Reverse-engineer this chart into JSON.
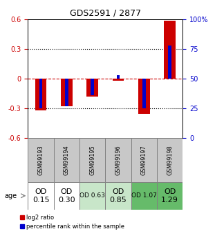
{
  "title": "GDS2591 / 2877",
  "samples": [
    "GSM99193",
    "GSM99194",
    "GSM99195",
    "GSM99196",
    "GSM99197",
    "GSM99198"
  ],
  "log2_ratio": [
    -0.32,
    -0.28,
    -0.18,
    -0.02,
    -0.355,
    0.585
  ],
  "percentile_rank_pct": [
    25,
    27,
    36,
    53,
    25,
    78
  ],
  "age_labels": [
    "OD\n0.15",
    "OD\n0.30",
    "OD 0.63",
    "OD\n0.85",
    "OD 1.07",
    "OD\n1.29"
  ],
  "age_bg_colors": [
    "#ffffff",
    "#ffffff",
    "#c8e6c9",
    "#c8e6c9",
    "#66bb6a",
    "#66bb6a"
  ],
  "age_font_sizes": [
    8,
    8,
    6.5,
    8,
    6.5,
    8
  ],
  "ylim_left": [
    -0.6,
    0.6
  ],
  "ylim_right": [
    0,
    100
  ],
  "yticks_left": [
    -0.6,
    -0.3,
    0.0,
    0.3,
    0.6
  ],
  "ytick_labels_left": [
    "-0.6",
    "-0.3",
    "0",
    "0.3",
    "0.6"
  ],
  "yticks_right": [
    0,
    25,
    50,
    75,
    100
  ],
  "ytick_labels_right": [
    "0",
    "25",
    "50",
    "75",
    "100%"
  ],
  "bar_color_red": "#cc0000",
  "bar_color_blue": "#0000cc",
  "zero_line_color": "#cc0000",
  "left_tick_color": "#cc0000",
  "right_tick_color": "#0000cc",
  "red_bar_width": 0.45,
  "blue_bar_width": 0.12,
  "sample_cell_color": "#c8c8c8"
}
